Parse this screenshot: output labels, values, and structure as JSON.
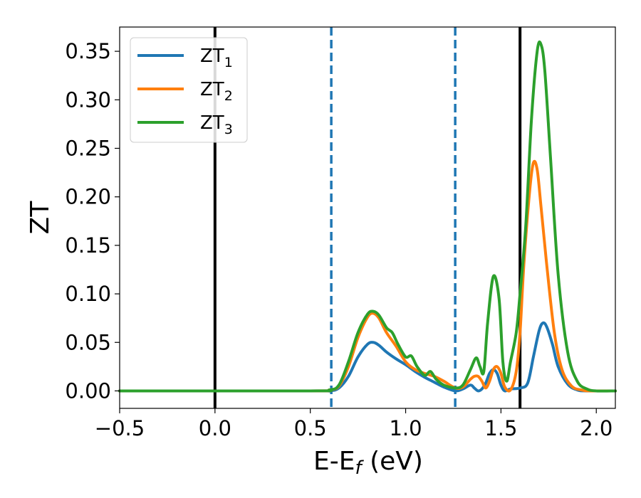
{
  "chart_data": {
    "type": "line",
    "title": "",
    "xlabel_main": "E-E",
    "xlabel_sub": "f",
    "xlabel_unit": " (eV)",
    "ylabel": "ZT",
    "xlim": [
      -0.5,
      2.1
    ],
    "ylim": [
      -0.018,
      0.375
    ],
    "x_ticks": [
      -0.5,
      0.0,
      0.5,
      1.0,
      1.5,
      2.0
    ],
    "x_tick_labels": [
      "−0.5",
      "0.0",
      "0.5",
      "1.0",
      "1.5",
      "2.0"
    ],
    "y_ticks": [
      0.0,
      0.05,
      0.1,
      0.15,
      0.2,
      0.25,
      0.3,
      0.35
    ],
    "y_tick_labels": [
      "0.00",
      "0.05",
      "0.10",
      "0.15",
      "0.20",
      "0.25",
      "0.30",
      "0.35"
    ],
    "grid": false,
    "legend_position": "top-left",
    "vertical_lines": [
      {
        "x": 0.0,
        "style": "solid",
        "color": "#000000"
      },
      {
        "x": 1.6,
        "style": "solid",
        "color": "#000000"
      },
      {
        "x": 0.61,
        "style": "dashed",
        "color": "#1f77b4"
      },
      {
        "x": 1.26,
        "style": "dashed",
        "color": "#1f77b4"
      }
    ],
    "series": [
      {
        "name_base": "ZT",
        "name_sub": "1",
        "color": "#1f77b4",
        "x": [
          -0.5,
          0.5,
          0.6,
          0.65,
          0.7,
          0.75,
          0.8,
          0.83,
          0.86,
          0.9,
          0.95,
          1.0,
          1.05,
          1.1,
          1.15,
          1.2,
          1.26,
          1.3,
          1.34,
          1.36,
          1.38,
          1.4,
          1.42,
          1.44,
          1.46,
          1.48,
          1.5,
          1.52,
          1.55,
          1.6,
          1.64,
          1.67,
          1.7,
          1.72,
          1.74,
          1.77,
          1.8,
          1.85,
          1.9,
          1.95,
          2.1
        ],
        "y": [
          0.0,
          0.0,
          0.0,
          0.003,
          0.015,
          0.035,
          0.048,
          0.05,
          0.047,
          0.04,
          0.033,
          0.027,
          0.02,
          0.014,
          0.009,
          0.004,
          0.0,
          0.002,
          0.006,
          0.003,
          0.0,
          0.002,
          0.008,
          0.018,
          0.022,
          0.018,
          0.006,
          0.0,
          0.002,
          0.003,
          0.008,
          0.035,
          0.062,
          0.07,
          0.066,
          0.048,
          0.025,
          0.007,
          0.001,
          0.0,
          0.0
        ]
      },
      {
        "name_base": "ZT",
        "name_sub": "2",
        "color": "#ff7f0e",
        "x": [
          -0.5,
          0.5,
          0.6,
          0.65,
          0.7,
          0.75,
          0.8,
          0.83,
          0.86,
          0.9,
          0.95,
          1.0,
          1.05,
          1.1,
          1.15,
          1.2,
          1.26,
          1.3,
          1.34,
          1.36,
          1.38,
          1.4,
          1.42,
          1.44,
          1.46,
          1.48,
          1.5,
          1.52,
          1.55,
          1.58,
          1.6,
          1.62,
          1.65,
          1.67,
          1.69,
          1.71,
          1.74,
          1.78,
          1.82,
          1.87,
          1.92,
          1.97,
          2.1
        ],
        "y": [
          0.0,
          0.0,
          0.001,
          0.005,
          0.025,
          0.055,
          0.076,
          0.08,
          0.075,
          0.06,
          0.046,
          0.03,
          0.022,
          0.018,
          0.015,
          0.01,
          0.003,
          0.004,
          0.012,
          0.015,
          0.015,
          0.01,
          0.003,
          0.01,
          0.022,
          0.025,
          0.018,
          0.004,
          0.001,
          0.02,
          0.06,
          0.13,
          0.205,
          0.235,
          0.228,
          0.19,
          0.13,
          0.06,
          0.022,
          0.005,
          0.001,
          0.0,
          0.0
        ]
      },
      {
        "name_base": "ZT",
        "name_sub": "3",
        "color": "#2ca02c",
        "x": [
          -0.5,
          0.5,
          0.6,
          0.65,
          0.7,
          0.75,
          0.8,
          0.83,
          0.86,
          0.9,
          0.93,
          0.96,
          1.0,
          1.03,
          1.06,
          1.1,
          1.13,
          1.16,
          1.2,
          1.26,
          1.3,
          1.34,
          1.37,
          1.39,
          1.41,
          1.43,
          1.46,
          1.49,
          1.51,
          1.53,
          1.55,
          1.58,
          1.6,
          1.63,
          1.66,
          1.69,
          1.71,
          1.73,
          1.76,
          1.8,
          1.85,
          1.9,
          1.95,
          2.0,
          2.1
        ],
        "y": [
          0.0,
          0.0,
          0.001,
          0.006,
          0.03,
          0.06,
          0.079,
          0.082,
          0.078,
          0.065,
          0.06,
          0.048,
          0.035,
          0.036,
          0.025,
          0.016,
          0.02,
          0.012,
          0.006,
          0.003,
          0.006,
          0.022,
          0.034,
          0.025,
          0.02,
          0.07,
          0.118,
          0.095,
          0.03,
          0.01,
          0.03,
          0.06,
          0.1,
          0.17,
          0.28,
          0.35,
          0.357,
          0.33,
          0.24,
          0.12,
          0.04,
          0.01,
          0.002,
          0.0,
          0.0
        ]
      }
    ]
  }
}
